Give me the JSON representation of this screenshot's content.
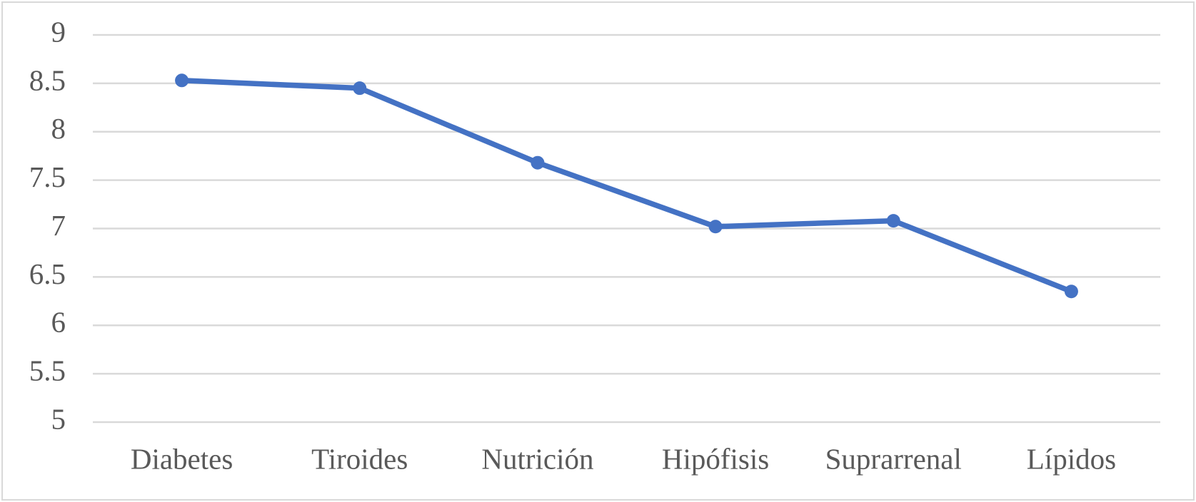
{
  "chart_data": {
    "type": "line",
    "categories": [
      "Diabetes",
      "Tiroides",
      "Nutrición",
      "Hipófisis",
      "Suprarrenal",
      "Lípidos"
    ],
    "values": [
      8.53,
      8.45,
      7.68,
      7.02,
      7.08,
      6.35
    ],
    "color": "#4472c4",
    "ylim": [
      5,
      9
    ],
    "yticks": [
      5,
      5.5,
      6,
      6.5,
      7,
      7.5,
      8,
      8.5,
      9
    ],
    "grid": true
  }
}
